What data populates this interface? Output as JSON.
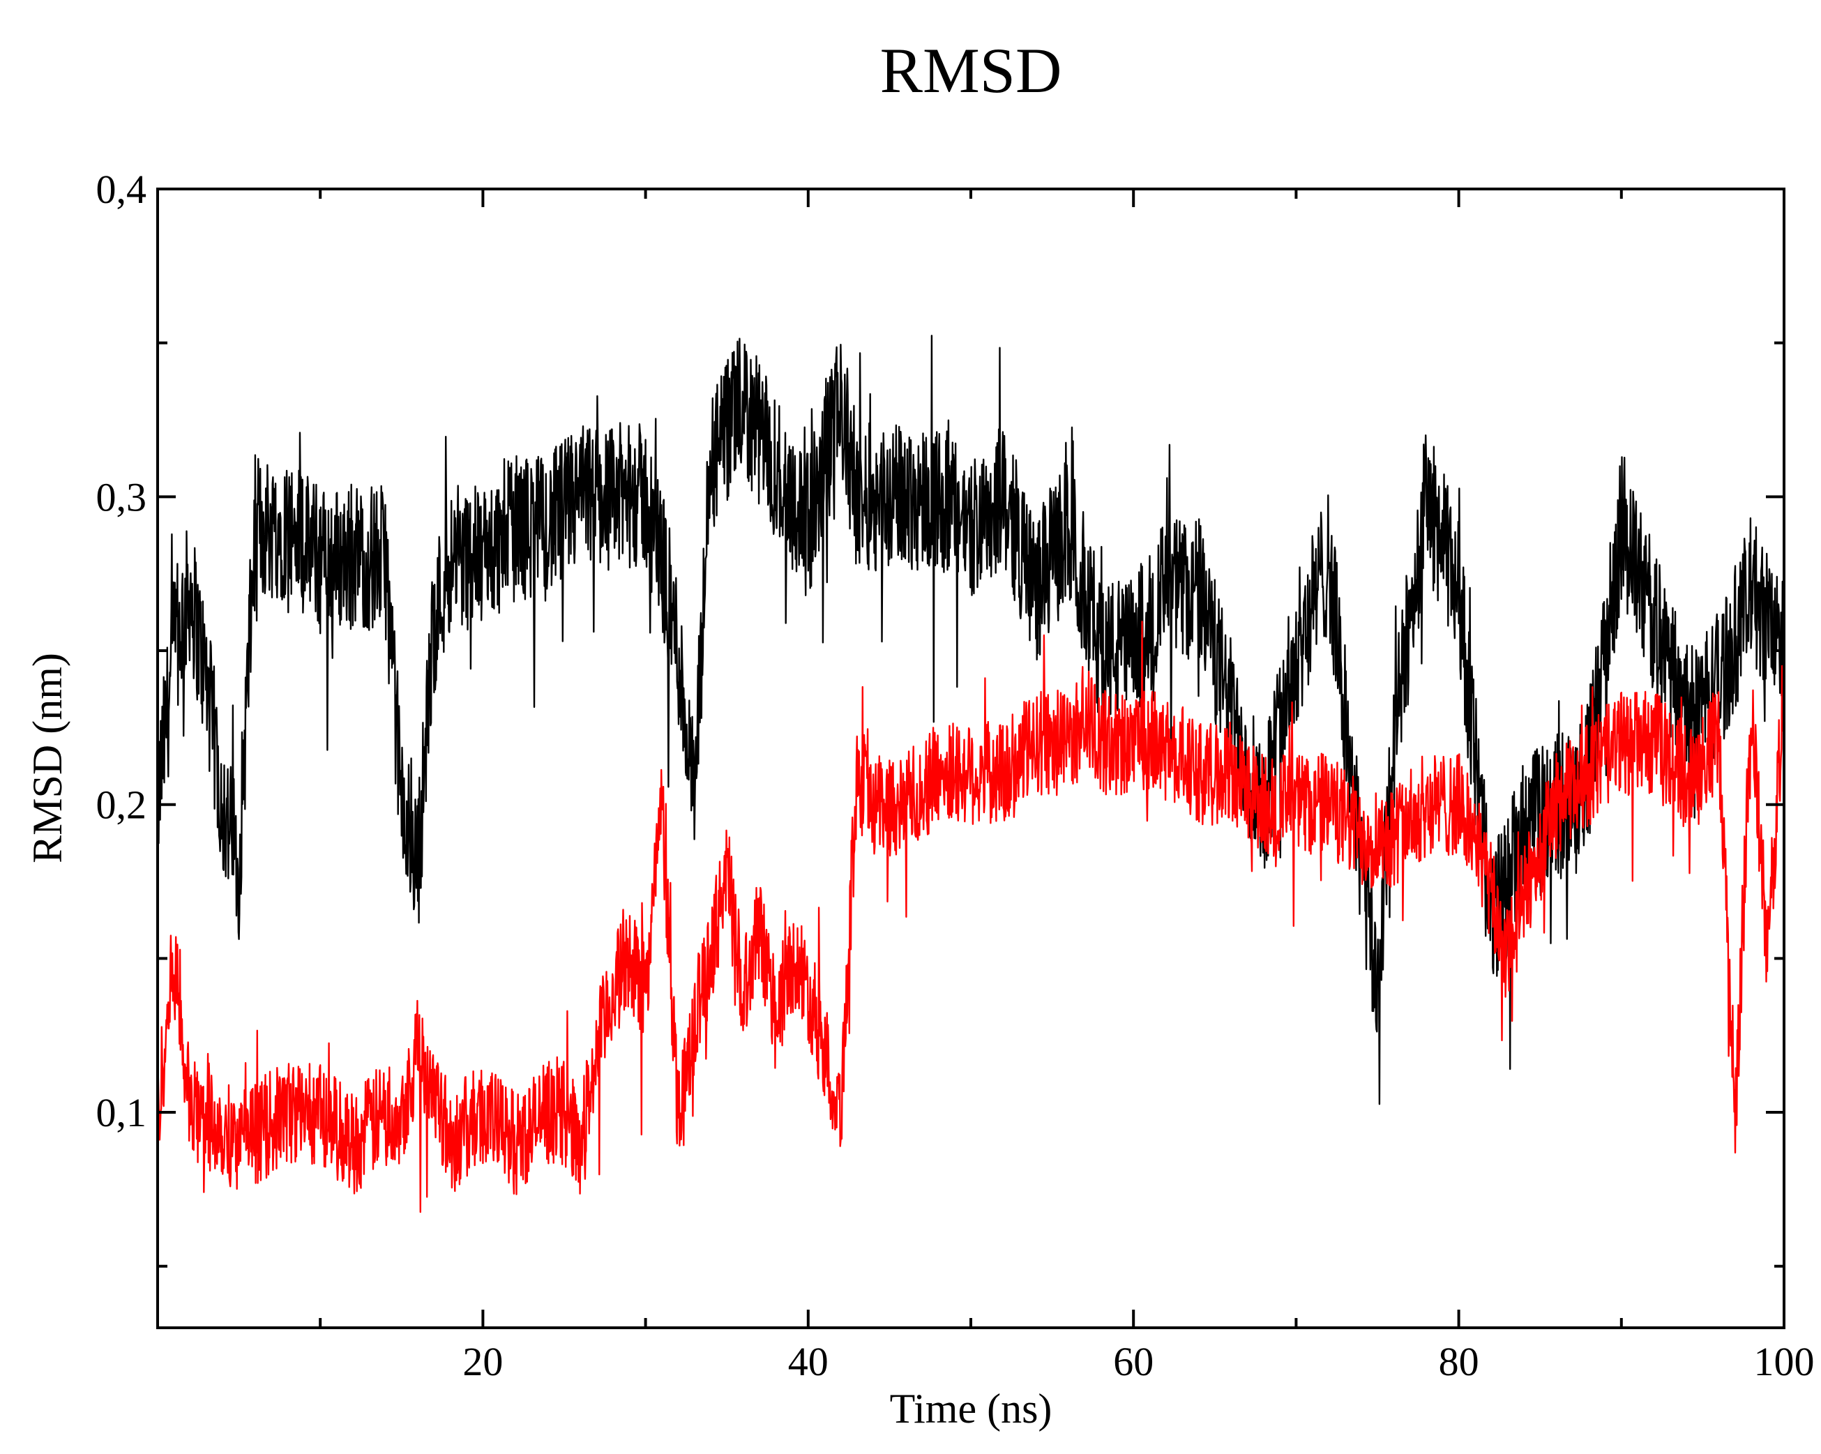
{
  "chart_data": {
    "type": "line",
    "title": "RMSD",
    "xlabel": "Time (ns)",
    "ylabel": "RMSD (nm)",
    "xlim": [
      0,
      100
    ],
    "ylim": [
      0.03,
      0.4
    ],
    "x_ticks": [
      20,
      40,
      60,
      80,
      100
    ],
    "x_tick_labels": [
      "20",
      "40",
      "60",
      "80",
      "100"
    ],
    "x_minor_ticks": [
      10,
      30,
      50,
      70,
      90
    ],
    "y_ticks": [
      0.1,
      0.2,
      0.3,
      0.4
    ],
    "y_tick_labels": [
      "0,1",
      "0,2",
      "0,3",
      "0,4"
    ],
    "y_minor_ticks": [
      0.05,
      0.15,
      0.25,
      0.35
    ],
    "grid": false,
    "legend": "none",
    "series": [
      {
        "color": "#000000",
        "x": [
          0,
          1,
          2,
          3,
          4,
          5,
          6,
          8,
          10,
          12,
          14,
          15,
          16,
          17,
          18,
          20,
          22,
          24,
          26,
          28,
          30,
          31,
          32,
          33,
          34,
          36,
          38,
          40,
          42,
          43,
          44,
          46,
          48,
          50,
          52,
          54,
          56,
          58,
          60,
          62,
          64,
          66,
          68,
          70,
          72,
          74,
          75,
          76,
          78,
          80,
          82,
          84,
          86,
          88,
          90,
          92,
          94,
          96,
          98,
          100
        ],
        "y": [
          0.2,
          0.25,
          0.27,
          0.24,
          0.2,
          0.18,
          0.29,
          0.29,
          0.28,
          0.28,
          0.28,
          0.2,
          0.18,
          0.26,
          0.28,
          0.28,
          0.29,
          0.29,
          0.3,
          0.3,
          0.3,
          0.28,
          0.25,
          0.2,
          0.31,
          0.33,
          0.31,
          0.29,
          0.33,
          0.3,
          0.3,
          0.3,
          0.3,
          0.29,
          0.3,
          0.27,
          0.29,
          0.25,
          0.25,
          0.27,
          0.27,
          0.23,
          0.2,
          0.25,
          0.28,
          0.18,
          0.14,
          0.22,
          0.3,
          0.27,
          0.16,
          0.19,
          0.2,
          0.21,
          0.29,
          0.26,
          0.23,
          0.24,
          0.27,
          0.25
        ]
      },
      {
        "color": "#ff0000",
        "x": [
          0,
          1,
          2,
          3,
          5,
          8,
          10,
          12,
          14,
          15,
          16,
          17,
          18,
          20,
          22,
          24,
          25,
          26,
          27,
          28,
          29,
          30,
          31,
          32,
          33,
          34,
          35,
          36,
          37,
          38,
          39,
          40,
          41,
          42,
          43,
          44,
          46,
          48,
          50,
          52,
          54,
          56,
          57,
          58,
          60,
          62,
          64,
          66,
          68,
          70,
          72,
          74,
          76,
          78,
          80,
          81,
          82,
          83,
          84,
          86,
          88,
          90,
          92,
          94,
          96,
          97,
          98,
          99,
          100
        ],
        "y": [
          0.1,
          0.15,
          0.1,
          0.1,
          0.09,
          0.1,
          0.1,
          0.09,
          0.1,
          0.1,
          0.12,
          0.11,
          0.09,
          0.1,
          0.09,
          0.1,
          0.1,
          0.09,
          0.12,
          0.14,
          0.15,
          0.14,
          0.2,
          0.1,
          0.13,
          0.15,
          0.18,
          0.14,
          0.16,
          0.13,
          0.15,
          0.14,
          0.12,
          0.1,
          0.21,
          0.2,
          0.2,
          0.21,
          0.21,
          0.21,
          0.22,
          0.22,
          0.23,
          0.22,
          0.22,
          0.22,
          0.21,
          0.21,
          0.2,
          0.2,
          0.2,
          0.19,
          0.19,
          0.2,
          0.2,
          0.19,
          0.17,
          0.15,
          0.17,
          0.2,
          0.21,
          0.22,
          0.22,
          0.21,
          0.22,
          0.1,
          0.23,
          0.15,
          0.24
        ]
      }
    ]
  }
}
